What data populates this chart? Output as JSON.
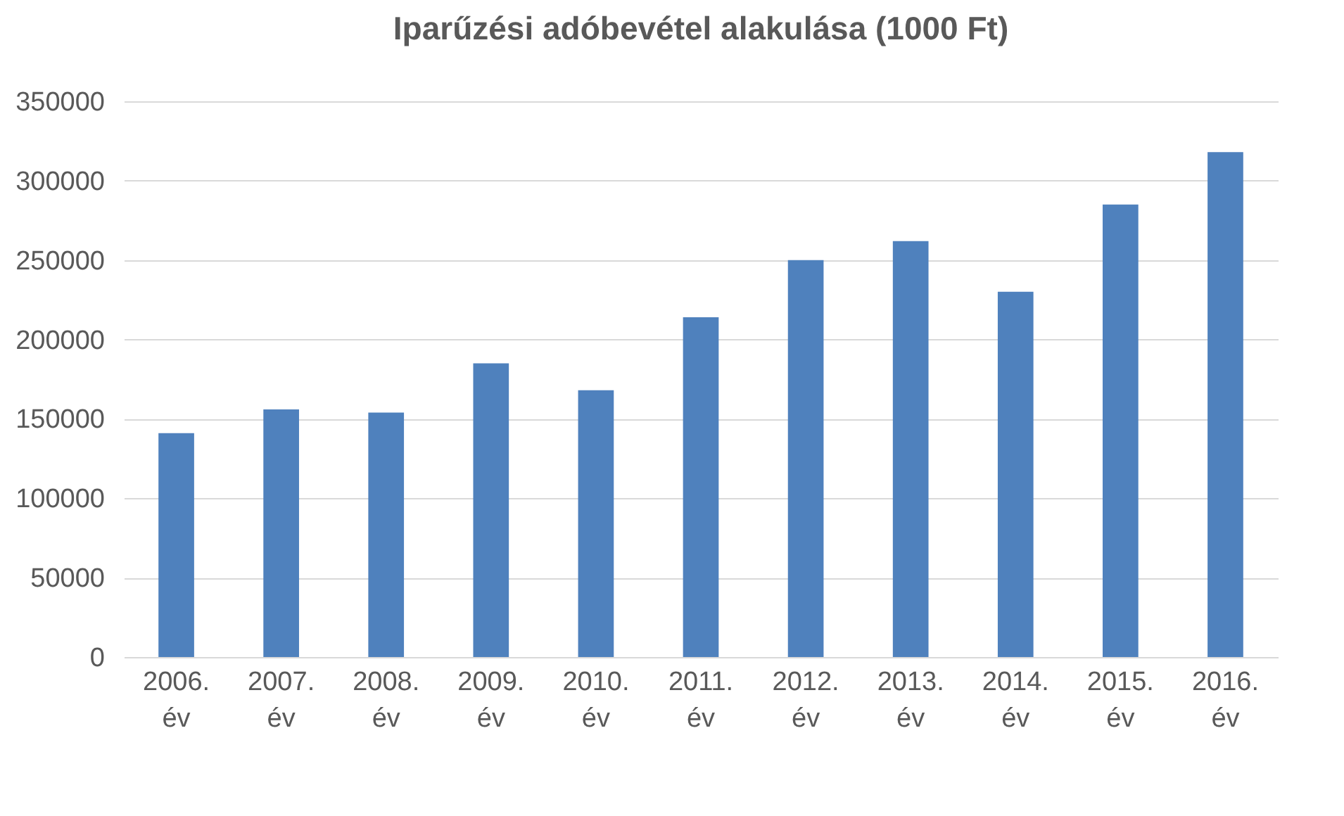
{
  "chart_data": {
    "type": "bar",
    "title": "Iparűzési adóbevétel alakulása (1000 Ft)",
    "categories": [
      "2006. év",
      "2007. év",
      "2008. év",
      "2009. év",
      "2010. év",
      "2011. év",
      "2012. év",
      "2013. év",
      "2014. év",
      "2015. év",
      "2016. év"
    ],
    "values": [
      141000,
      156000,
      154000,
      185000,
      168000,
      214000,
      250000,
      262000,
      230000,
      285000,
      318000
    ],
    "color": "#4f81bd",
    "ylim": [
      0,
      350000
    ],
    "yticks": [
      0,
      50000,
      100000,
      150000,
      200000,
      250000,
      300000,
      350000
    ],
    "grid": "y"
  }
}
